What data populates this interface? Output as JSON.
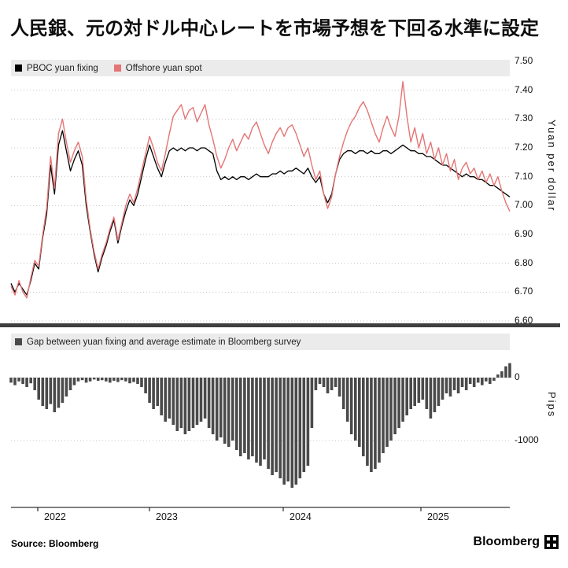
{
  "title": "人民銀、元の対ドル中心レートを市場予想を下回る水準に設定",
  "source": "Source: Bloomberg",
  "logo": {
    "text": "Bloomberg"
  },
  "colors": {
    "pboc_line": "#000000",
    "offshore_line": "#e57474",
    "gap_bars": "#4a4a4a",
    "divider": "#3f3f3f",
    "legend_background": "#ebebeb",
    "grid": "#c4c4c4"
  },
  "chart_data": [
    {
      "type": "line",
      "ylabel": "Yuan per dollar",
      "ylim": [
        6.6,
        7.5
      ],
      "yticks": [
        7.5,
        7.4,
        7.3,
        7.2,
        7.1,
        7.0,
        6.9,
        6.8,
        6.7,
        6.6
      ],
      "x_year_labels": [
        "2022",
        "2023",
        "2024",
        "2025"
      ],
      "grid": "dotted-horizontal",
      "legend_position": "top-left",
      "series": [
        {
          "name": "PBOC yuan fixing",
          "color": "#000000",
          "values": [
            6.73,
            6.7,
            6.73,
            6.71,
            6.69,
            6.74,
            6.8,
            6.78,
            6.89,
            6.97,
            7.14,
            7.04,
            7.21,
            7.26,
            7.19,
            7.12,
            7.16,
            7.19,
            7.14,
            7.0,
            6.91,
            6.83,
            6.77,
            6.82,
            6.86,
            6.91,
            6.95,
            6.87,
            6.93,
            6.98,
            7.02,
            7.0,
            7.04,
            7.1,
            7.16,
            7.21,
            7.17,
            7.13,
            7.1,
            7.15,
            7.19,
            7.2,
            7.19,
            7.2,
            7.19,
            7.2,
            7.2,
            7.19,
            7.2,
            7.2,
            7.19,
            7.18,
            7.12,
            7.09,
            7.1,
            7.09,
            7.1,
            7.09,
            7.1,
            7.1,
            7.09,
            7.1,
            7.11,
            7.1,
            7.1,
            7.1,
            7.11,
            7.11,
            7.12,
            7.11,
            7.12,
            7.12,
            7.13,
            7.12,
            7.11,
            7.13,
            7.1,
            7.08,
            7.1,
            7.04,
            7.01,
            7.04,
            7.11,
            7.16,
            7.18,
            7.19,
            7.19,
            7.18,
            7.19,
            7.19,
            7.18,
            7.19,
            7.18,
            7.18,
            7.19,
            7.19,
            7.18,
            7.19,
            7.2,
            7.21,
            7.2,
            7.19,
            7.19,
            7.18,
            7.18,
            7.17,
            7.17,
            7.16,
            7.15,
            7.14,
            7.14,
            7.13,
            7.12,
            7.11,
            7.1,
            7.11,
            7.1,
            7.1,
            7.09,
            7.09,
            7.08,
            7.07,
            7.07,
            7.06,
            7.05,
            7.04,
            7.03
          ]
        },
        {
          "name": "Offshore yuan spot",
          "color": "#e57474",
          "values": [
            6.72,
            6.69,
            6.74,
            6.7,
            6.68,
            6.75,
            6.81,
            6.79,
            6.9,
            6.99,
            7.17,
            7.06,
            7.25,
            7.3,
            7.22,
            7.15,
            7.19,
            7.22,
            7.17,
            7.02,
            6.92,
            6.84,
            6.78,
            6.83,
            6.87,
            6.92,
            6.96,
            6.88,
            6.94,
            7.0,
            7.04,
            7.01,
            7.06,
            7.12,
            7.18,
            7.24,
            7.2,
            7.15,
            7.12,
            7.18,
            7.25,
            7.31,
            7.33,
            7.35,
            7.3,
            7.33,
            7.34,
            7.29,
            7.32,
            7.35,
            7.28,
            7.23,
            7.17,
            7.13,
            7.16,
            7.2,
            7.23,
            7.19,
            7.22,
            7.25,
            7.23,
            7.27,
            7.29,
            7.25,
            7.21,
            7.18,
            7.22,
            7.25,
            7.27,
            7.24,
            7.27,
            7.28,
            7.25,
            7.21,
            7.17,
            7.2,
            7.14,
            7.09,
            7.12,
            7.04,
            6.99,
            7.03,
            7.11,
            7.17,
            7.22,
            7.26,
            7.29,
            7.31,
            7.34,
            7.36,
            7.33,
            7.29,
            7.25,
            7.22,
            7.27,
            7.31,
            7.27,
            7.24,
            7.31,
            7.43,
            7.31,
            7.22,
            7.27,
            7.2,
            7.25,
            7.18,
            7.22,
            7.16,
            7.2,
            7.14,
            7.18,
            7.12,
            7.16,
            7.09,
            7.13,
            7.15,
            7.11,
            7.13,
            7.09,
            7.12,
            7.08,
            7.11,
            7.07,
            7.1,
            7.05,
            7.01,
            6.98
          ]
        }
      ]
    },
    {
      "type": "bar",
      "name": "Gap between yuan fixing and average estimate in Bloomberg survey",
      "ylabel": "Pips",
      "ylim": [
        -1900,
        300
      ],
      "yticks": [
        0,
        -1000
      ],
      "color": "#4a4a4a",
      "values": [
        -80,
        -120,
        -60,
        -100,
        -150,
        -90,
        -200,
        -350,
        -450,
        -500,
        -420,
        -550,
        -480,
        -400,
        -300,
        -200,
        -120,
        -60,
        -40,
        -80,
        -60,
        -30,
        -50,
        -40,
        -60,
        -80,
        -50,
        -70,
        -40,
        -60,
        -90,
        -70,
        -100,
        -150,
        -250,
        -400,
        -500,
        -450,
        -600,
        -700,
        -650,
        -750,
        -850,
        -800,
        -900,
        -850,
        -800,
        -750,
        -700,
        -650,
        -800,
        -900,
        -1000,
        -950,
        -1050,
        -1100,
        -1000,
        -1150,
        -1250,
        -1200,
        -1300,
        -1250,
        -1350,
        -1400,
        -1300,
        -1450,
        -1550,
        -1500,
        -1600,
        -1700,
        -1650,
        -1750,
        -1700,
        -1600,
        -1500,
        -1400,
        -800,
        -200,
        -100,
        -150,
        -250,
        -200,
        -150,
        -300,
        -500,
        -700,
        -900,
        -1000,
        -1100,
        -1250,
        -1400,
        -1500,
        -1450,
        -1350,
        -1200,
        -1100,
        -1000,
        -900,
        -800,
        -700,
        -600,
        -500,
        -450,
        -400,
        -350,
        -500,
        -650,
        -550,
        -450,
        -350,
        -250,
        -300,
        -200,
        -250,
        -150,
        -200,
        -100,
        -150,
        -80,
        -120,
        -60,
        -100,
        -50,
        50,
        100,
        180,
        230
      ]
    }
  ]
}
